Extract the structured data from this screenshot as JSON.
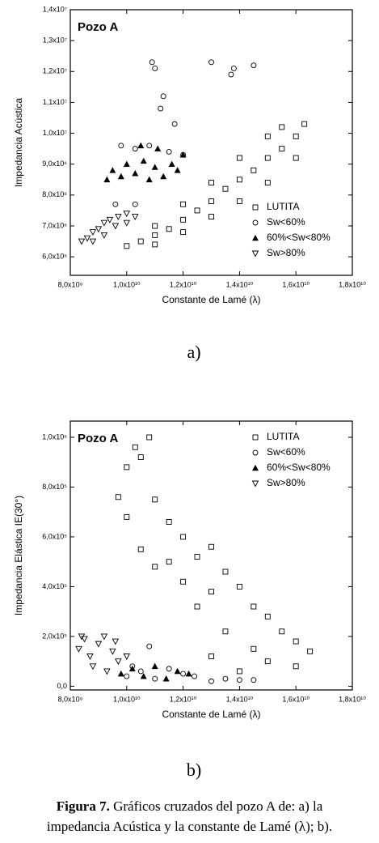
{
  "chart_data": [
    {
      "type": "scatter",
      "panel_label": "a)",
      "annotation": "Pozo A",
      "xlabel": "Constante de Lamé (λ)",
      "ylabel": "Impedancia Acústica",
      "xlim": [
        8000000000.0,
        18000000000.0
      ],
      "ylim": [
        5400000.0,
        14000000.0
      ],
      "xticks": [
        {
          "value": 8000000000.0,
          "label": "8,0x10⁹"
        },
        {
          "value": 10000000000.0,
          "label": "1,0x10¹⁰"
        },
        {
          "value": 12000000000.0,
          "label": "1,2x10¹⁰"
        },
        {
          "value": 14000000000.0,
          "label": "1,4x10¹⁰"
        },
        {
          "value": 16000000000.0,
          "label": "1,6x10¹⁰"
        },
        {
          "value": 18000000000.0,
          "label": "1,8x10¹⁰"
        }
      ],
      "yticks": [
        {
          "value": 6000000.0,
          "label": "6,0x10⁶"
        },
        {
          "value": 7000000.0,
          "label": "7,0x10⁶"
        },
        {
          "value": 8000000.0,
          "label": "8,0x10⁶"
        },
        {
          "value": 9000000.0,
          "label": "9,0x10⁶"
        },
        {
          "value": 10000000.0,
          "label": "1,0x10⁷"
        },
        {
          "value": 11000000.0,
          "label": "1,1x10⁷"
        },
        {
          "value": 12000000.0,
          "label": "1,2x10⁷"
        },
        {
          "value": 13000000.0,
          "label": "1,3x10⁷"
        },
        {
          "value": 14000000.0,
          "label": "1,4x10⁷"
        }
      ],
      "legend": "lower right",
      "series": [
        {
          "name": "LUTITA",
          "marker": "square",
          "color": "#000000",
          "x": [
            10000000000.0,
            10500000000.0,
            11000000000.0,
            11500000000.0,
            12000000000.0,
            12500000000.0,
            13000000000.0,
            13500000000.0,
            14000000000.0,
            14500000000.0,
            15000000000.0,
            15500000000.0,
            16000000000.0,
            16300000000.0,
            11000000000.0,
            12000000000.0,
            13000000000.0,
            14000000000.0,
            15000000000.0,
            15500000000.0,
            11000000000.0,
            12000000000.0,
            13000000000.0,
            14000000000.0,
            15000000000.0,
            16000000000.0
          ],
          "y": [
            6350000.0,
            6500000.0,
            6700000.0,
            6900000.0,
            7200000.0,
            7500000.0,
            7800000.0,
            8200000.0,
            8500000.0,
            8800000.0,
            9200000.0,
            9500000.0,
            9900000.0,
            10300000.0,
            7000000.0,
            7700000.0,
            8400000.0,
            9200000.0,
            9900000.0,
            10200000.0,
            6400000.0,
            6800000.0,
            7300000.0,
            7800000.0,
            8400000.0,
            9200000.0
          ]
        },
        {
          "name": "Sw<60%",
          "marker": "circle",
          "color": "#000000",
          "x": [
            10900000000.0,
            11000000000.0,
            11300000000.0,
            11200000000.0,
            11700000000.0,
            13000000000.0,
            13700000000.0,
            13800000000.0,
            14500000000.0,
            9600000000.0,
            10300000000.0,
            9800000000.0,
            10300000000.0,
            10800000000.0,
            11500000000.0,
            12000000000.0
          ],
          "y": [
            12300000.0,
            12100000.0,
            11200000.0,
            10800000.0,
            10300000.0,
            12300000.0,
            11900000.0,
            12100000.0,
            12200000.0,
            7700000.0,
            7700000.0,
            9600000.0,
            9500000.0,
            9600000.0,
            9400000.0,
            9300000.0
          ]
        },
        {
          "name": "60%<Sw<80%",
          "marker": "triangle-up",
          "color": "#000000",
          "x": [
            9300000000.0,
            9500000000.0,
            9800000000.0,
            10000000000.0,
            10300000000.0,
            10600000000.0,
            10800000000.0,
            11000000000.0,
            11300000000.0,
            11600000000.0,
            11800000000.0,
            12000000000.0,
            10500000000.0,
            11100000000.0
          ],
          "y": [
            8500000.0,
            8800000.0,
            8600000.0,
            9000000.0,
            8700000.0,
            9100000.0,
            8500000.0,
            8900000.0,
            8600000.0,
            9000000.0,
            8800000.0,
            9300000.0,
            9600000.0,
            9500000.0
          ]
        },
        {
          "name": "Sw>80%",
          "marker": "triangle-down",
          "color": "#000000",
          "x": [
            8400000000.0,
            8600000000.0,
            8800000000.0,
            9000000000.0,
            9200000000.0,
            9400000000.0,
            9700000000.0,
            10000000000.0,
            10300000000.0,
            8800000000.0,
            9200000000.0,
            9600000000.0,
            10000000000.0
          ],
          "y": [
            6500000.0,
            6600000.0,
            6800000.0,
            6900000.0,
            7100000.0,
            7200000.0,
            7300000.0,
            7400000.0,
            7300000.0,
            6500000.0,
            6700000.0,
            7000000.0,
            7100000.0
          ]
        }
      ]
    },
    {
      "type": "scatter",
      "panel_label": "b)",
      "annotation": "Pozo A",
      "xlabel": "Constante de Lamé (λ)",
      "ylabel": "Impedancia Elástica IE(30°)",
      "xlim": [
        8000000000.0,
        18000000000.0
      ],
      "ylim": [
        -15000,
        1065000
      ],
      "xticks": [
        {
          "value": 8000000000.0,
          "label": "8,0x10⁹"
        },
        {
          "value": 10000000000.0,
          "label": "1,0x10¹⁰"
        },
        {
          "value": 12000000000.0,
          "label": "1,2x10¹⁰"
        },
        {
          "value": 14000000000.0,
          "label": "1,4x10¹⁰"
        },
        {
          "value": 16000000000.0,
          "label": "1,6x10¹⁰"
        },
        {
          "value": 18000000000.0,
          "label": "1,8x10¹⁰"
        }
      ],
      "yticks": [
        {
          "value": 0,
          "label": "0,0"
        },
        {
          "value": 200000,
          "label": "2,0x10⁵"
        },
        {
          "value": 400000,
          "label": "4,0x10⁵"
        },
        {
          "value": 600000,
          "label": "6,0x10⁵"
        },
        {
          "value": 800000,
          "label": "8,0x10⁵"
        },
        {
          "value": 1000000,
          "label": "1,0x10⁶"
        }
      ],
      "legend": "upper right",
      "series": [
        {
          "name": "LUTITA",
          "marker": "square",
          "color": "#000000",
          "x": [
            9700000000.0,
            10000000000.0,
            10300000000.0,
            10800000000.0,
            10500000000.0,
            10000000000.0,
            10500000000.0,
            11000000000.0,
            11500000000.0,
            12000000000.0,
            12500000000.0,
            13000000000.0,
            13500000000.0,
            13000000000.0,
            14000000000.0,
            14500000000.0,
            15000000000.0,
            15500000000.0,
            16000000000.0,
            16500000000.0,
            12000000000.0,
            12500000000.0,
            13500000000.0,
            14500000000.0,
            15000000000.0,
            14000000000.0,
            11000000000.0,
            11500000000.0,
            13000000000.0,
            16000000000.0
          ],
          "y": [
            760000,
            880000,
            960000,
            1000000,
            920000,
            680000,
            550000,
            750000,
            660000,
            600000,
            520000,
            560000,
            460000,
            380000,
            400000,
            320000,
            280000,
            220000,
            180000,
            140000,
            420000,
            320000,
            220000,
            150000,
            100000,
            60000,
            480000,
            500000,
            120000,
            80000
          ]
        },
        {
          "name": "Sw<60%",
          "marker": "circle",
          "color": "#000000",
          "x": [
            10000000000.0,
            10500000000.0,
            11000000000.0,
            11500000000.0,
            12000000000.0,
            12400000000.0,
            10800000000.0,
            13000000000.0,
            13500000000.0,
            14000000000.0,
            14500000000.0,
            10200000000.0
          ],
          "y": [
            40000,
            60000,
            30000,
            70000,
            50000,
            40000,
            160000,
            20000,
            30000,
            25000,
            25000,
            80000
          ]
        },
        {
          "name": "60%<Sw<80%",
          "marker": "triangle-up",
          "color": "#000000",
          "x": [
            9800000000.0,
            10200000000.0,
            10600000000.0,
            11000000000.0,
            11400000000.0,
            11800000000.0,
            12200000000.0
          ],
          "y": [
            50000,
            70000,
            40000,
            80000,
            30000,
            60000,
            50000
          ]
        },
        {
          "name": "Sw>80%",
          "marker": "triangle-down",
          "color": "#000000",
          "x": [
            8300000000.0,
            8500000000.0,
            8700000000.0,
            9000000000.0,
            9200000000.0,
            9500000000.0,
            9700000000.0,
            10000000000.0,
            8800000000.0,
            9300000000.0,
            9600000000.0,
            8400000000.0
          ],
          "y": [
            150000,
            190000,
            120000,
            170000,
            200000,
            140000,
            100000,
            120000,
            80000,
            60000,
            180000,
            200000
          ]
        }
      ]
    }
  ],
  "caption": {
    "label": "Figura 7.",
    "text": "Gráficos cruzados del pozo A de: a) la",
    "line2": "impedancia Acústica y la constante de Lamé (λ); b)."
  }
}
